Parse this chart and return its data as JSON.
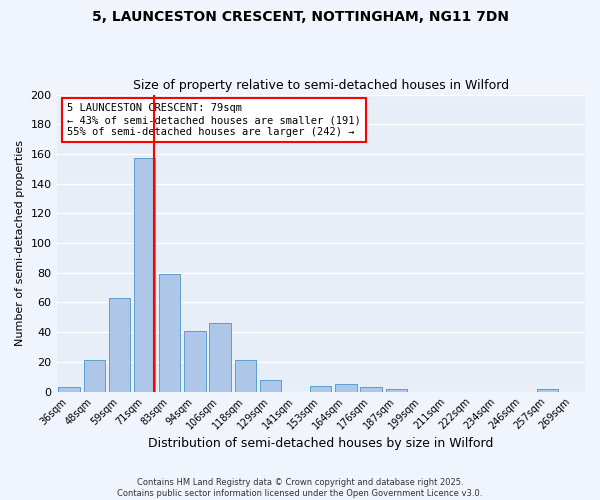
{
  "title": "5, LAUNCESTON CRESCENT, NOTTINGHAM, NG11 7DN",
  "subtitle": "Size of property relative to semi-detached houses in Wilford",
  "xlabel": "Distribution of semi-detached houses by size in Wilford",
  "ylabel": "Number of semi-detached properties",
  "bar_color": "#aec6e8",
  "bar_edge_color": "#5a9fd4",
  "background_color": "#e8eef8",
  "grid_color": "#ffffff",
  "annotation_line1": "5 LAUNCESTON CRESCENT: 79sqm",
  "annotation_line2": "← 43% of semi-detached houses are smaller (191)",
  "annotation_line3": "55% of semi-detached houses are larger (242) →",
  "categories": [
    "36sqm",
    "48sqm",
    "59sqm",
    "71sqm",
    "83sqm",
    "94sqm",
    "106sqm",
    "118sqm",
    "129sqm",
    "141sqm",
    "153sqm",
    "164sqm",
    "176sqm",
    "187sqm",
    "199sqm",
    "211sqm",
    "222sqm",
    "234sqm",
    "246sqm",
    "257sqm",
    "269sqm"
  ],
  "values": [
    3,
    21,
    63,
    157,
    79,
    41,
    46,
    21,
    8,
    0,
    4,
    5,
    3,
    2,
    0,
    0,
    0,
    0,
    0,
    2,
    0
  ],
  "ylim": [
    0,
    200
  ],
  "yticks": [
    0,
    20,
    40,
    60,
    80,
    100,
    120,
    140,
    160,
    180,
    200
  ],
  "footer_line1": "Contains HM Land Registry data © Crown copyright and database right 2025.",
  "footer_line2": "Contains public sector information licensed under the Open Government Licence v3.0.",
  "fig_background": "#f0f4fc"
}
